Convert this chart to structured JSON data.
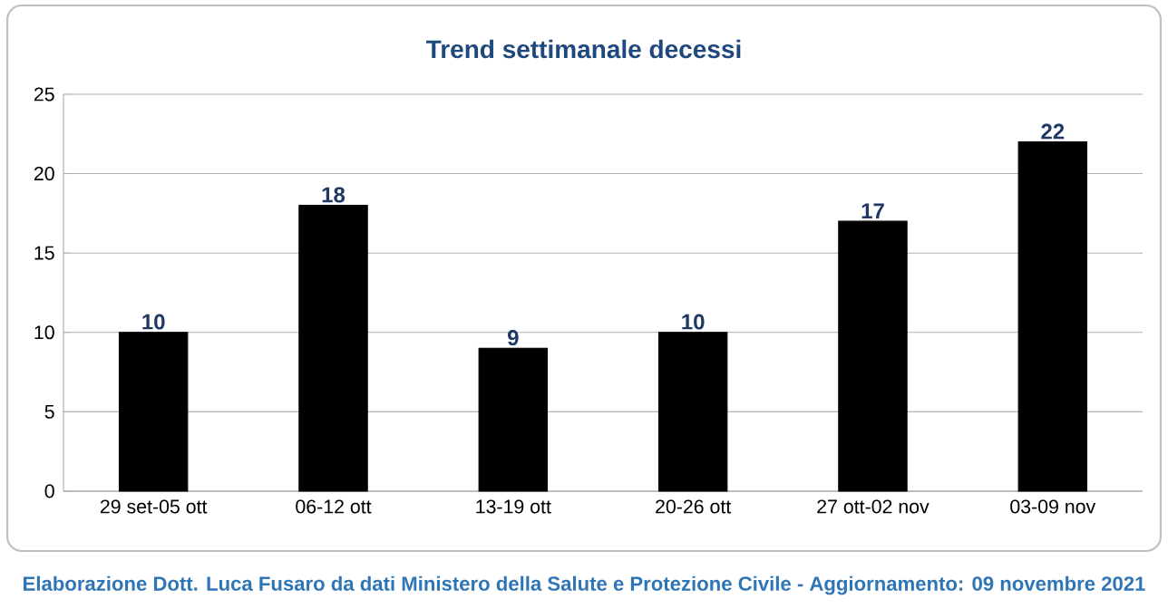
{
  "chart_data": {
    "type": "bar",
    "title": "Trend settimanale decessi",
    "categories": [
      "29 set-05 ott",
      "06-12 ott",
      "13-19 ott",
      "20-26 ott",
      "27 ott-02 nov",
      "03-09 nov"
    ],
    "values": [
      10,
      18,
      9,
      10,
      17,
      22
    ],
    "color": "#000000",
    "ylim": [
      0,
      25
    ],
    "yticks": [
      0,
      5,
      10,
      15,
      20,
      25
    ],
    "grid": "y",
    "data_labels": true,
    "annotations": [
      "Elaborazione Dott. Luca Fusaro da dati Ministero della Salute e Protezione Civile - Aggiornamento: 09 novembre 2021"
    ]
  }
}
